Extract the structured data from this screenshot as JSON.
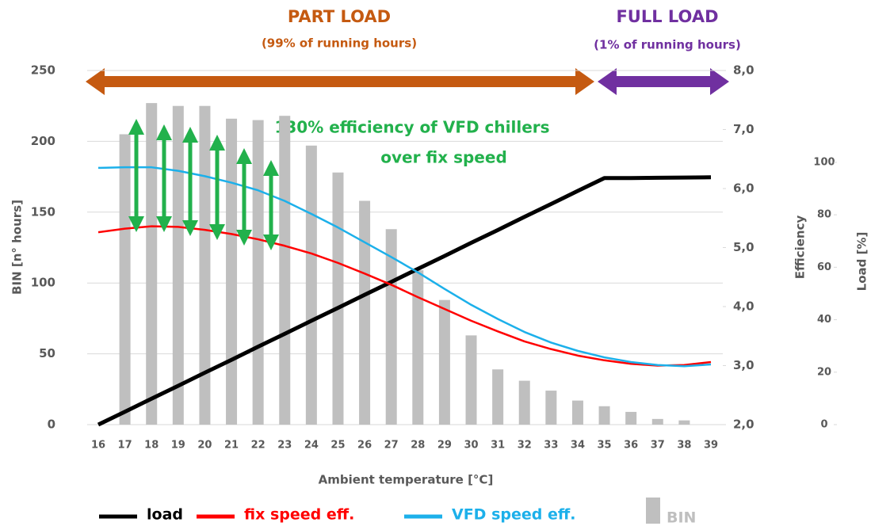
{
  "chart_data": {
    "type": "combo",
    "header": {
      "left_title": "PART LOAD",
      "left_subtitle": "(99% of running hours)",
      "right_title": "FULL LOAD",
      "right_subtitle": "(1% of running hours)"
    },
    "annotation": [
      "130% efficiency of VFD chillers",
      "over fix speed"
    ],
    "xlabel": "Ambient temperature [°C]",
    "ylabel": "BIN [n° hours]",
    "y2label": "Efficiency",
    "y3label": "Load [%]",
    "categories": [
      "16",
      "17",
      "18",
      "19",
      "20",
      "21",
      "22",
      "23",
      "24",
      "25",
      "26",
      "27",
      "28",
      "29",
      "30",
      "31",
      "32",
      "33",
      "34",
      "35",
      "36",
      "37",
      "38",
      "39"
    ],
    "series": [
      {
        "name": "load",
        "type": "line",
        "axis": "y3",
        "color": "#000000",
        "values": [
          0,
          4.9,
          9.9,
          14.8,
          19.8,
          24.7,
          29.7,
          34.6,
          39.6,
          44.5,
          49.5,
          54.4,
          59.4,
          64.3,
          69.3,
          74.2,
          79.2,
          84.1,
          89.1,
          94,
          94,
          94.1,
          94.2,
          94.3
        ]
      },
      {
        "name": "fix speed eff.",
        "type": "line",
        "axis": "y2",
        "color": "#ff0000",
        "values": [
          5.26,
          5.32,
          5.36,
          5.35,
          5.3,
          5.23,
          5.14,
          5.03,
          4.9,
          4.74,
          4.56,
          4.37,
          4.16,
          3.96,
          3.76,
          3.58,
          3.41,
          3.28,
          3.17,
          3.09,
          3.03,
          3.0,
          3.01,
          3.06
        ]
      },
      {
        "name": "VFD speed eff.",
        "type": "line",
        "axis": "y2",
        "color": "#1cb0ea",
        "values": [
          6.35,
          6.36,
          6.36,
          6.3,
          6.21,
          6.1,
          5.97,
          5.79,
          5.57,
          5.34,
          5.09,
          4.84,
          4.58,
          4.3,
          4.03,
          3.79,
          3.57,
          3.39,
          3.25,
          3.14,
          3.06,
          3.01,
          2.99,
          3.02
        ]
      },
      {
        "name": "BIN",
        "type": "bar",
        "axis": "y",
        "color": "#bfbfbf",
        "values": [
          null,
          205,
          227,
          225,
          225,
          216,
          215,
          218,
          197,
          178,
          158,
          138,
          109,
          88,
          63,
          39,
          31,
          24,
          17,
          13,
          9,
          4,
          3,
          null
        ]
      }
    ],
    "ylim": [
      0,
      250
    ],
    "yticks": [
      0,
      50,
      100,
      150,
      200,
      250
    ],
    "y2lim": [
      2,
      8
    ],
    "y2ticks": [
      {
        "value": 2,
        "label": "2,0"
      },
      {
        "value": 3,
        "label": "3,0"
      },
      {
        "value": 4,
        "label": "4,0"
      },
      {
        "value": 5,
        "label": "5,0"
      },
      {
        "value": 6,
        "label": "6,0"
      },
      {
        "value": 7,
        "label": "7,0"
      },
      {
        "value": 8,
        "label": "8,0"
      }
    ],
    "y3lim": [
      0,
      135
    ],
    "y3ticks": [
      0,
      20,
      40,
      60,
      80,
      100
    ],
    "grid": true
  }
}
